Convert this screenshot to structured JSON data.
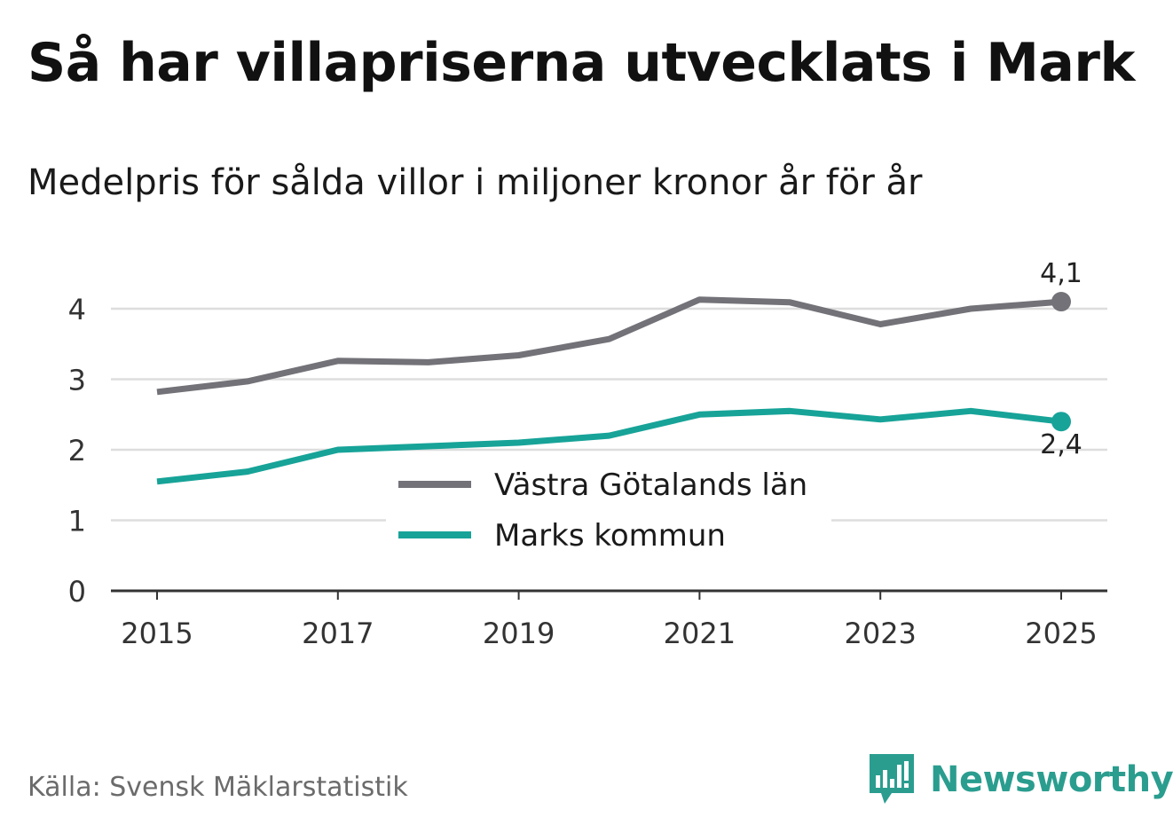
{
  "title": "Så har villapriserna utvecklats i Mark",
  "subtitle": "Medelpris för sålda villor i miljoner kronor år för år",
  "source": "Källa: Svensk Mäklarstatistik",
  "brand": {
    "name": "Newsworthy",
    "color": "#2a9d8f"
  },
  "colors": {
    "vastra": "#737278",
    "marks": "#17a398",
    "grid": "#dddddd",
    "axis": "#333333"
  },
  "chart_data": {
    "type": "line",
    "title": "Så har villapriserna utvecklats i Mark",
    "subtitle": "Medelpris för sålda villor i miljoner kronor år för år",
    "xlabel": "",
    "ylabel": "",
    "x": [
      2015,
      2016,
      2017,
      2018,
      2019,
      2020,
      2021,
      2022,
      2023,
      2024,
      2025
    ],
    "x_ticks": [
      "2015",
      "2017",
      "2019",
      "2021",
      "2023",
      "2025"
    ],
    "y_ticks": [
      "0",
      "1",
      "2",
      "3",
      "4"
    ],
    "ylim": [
      0,
      4.6
    ],
    "grid": true,
    "legend_position": "center",
    "series": [
      {
        "name": "Västra Götalands län",
        "values": [
          2.82,
          2.97,
          3.26,
          3.24,
          3.34,
          3.57,
          4.13,
          4.09,
          3.78,
          4.0,
          4.1
        ],
        "end_label": "4,1"
      },
      {
        "name": "Marks kommun",
        "values": [
          1.55,
          1.69,
          2.0,
          2.05,
          2.1,
          2.2,
          2.5,
          2.55,
          2.43,
          2.55,
          2.4
        ],
        "end_label": "2,4"
      }
    ]
  }
}
